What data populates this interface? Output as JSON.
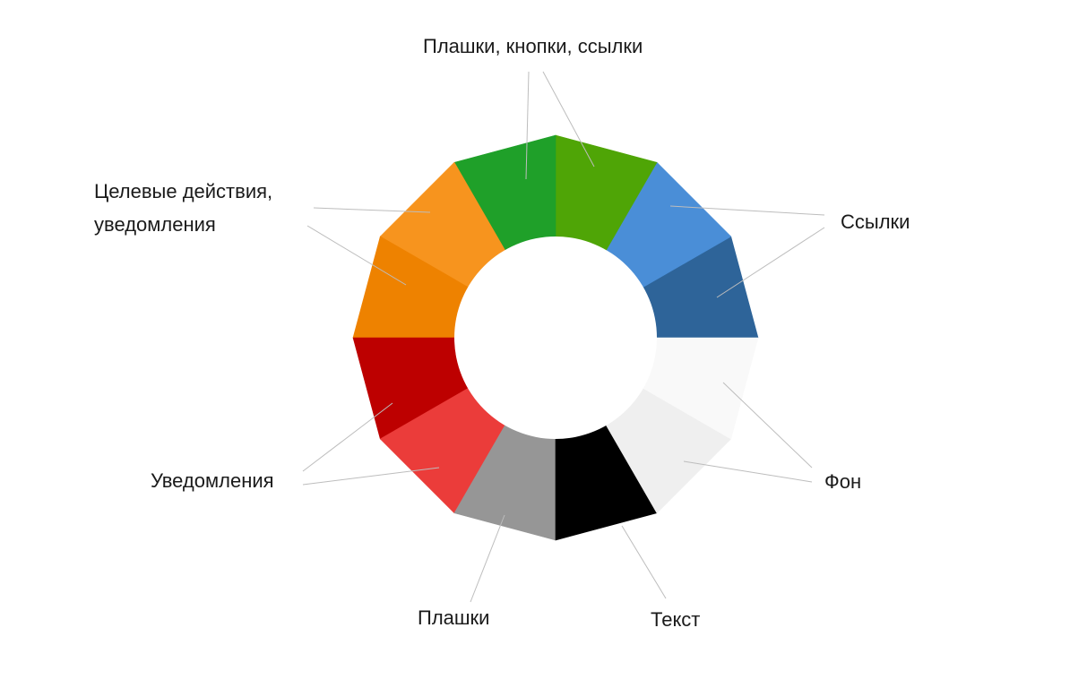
{
  "segments": [
    {
      "color": "#2E6499",
      "group": "links"
    },
    {
      "color": "#4A8ED7",
      "group": "links"
    },
    {
      "color": "#4FA506",
      "group": "primary"
    },
    {
      "color": "#1FA029",
      "group": "primary"
    },
    {
      "color": "#F7941E",
      "group": "accent"
    },
    {
      "color": "#EE8200",
      "group": "accent"
    },
    {
      "color": "#BD0000",
      "group": "notifications"
    },
    {
      "color": "#EB3C3A",
      "group": "notifications"
    },
    {
      "color": "#969696",
      "group": "plates"
    },
    {
      "color": "#000000",
      "group": "text"
    },
    {
      "color": "#EFEFEF",
      "group": "background"
    },
    {
      "color": "#F9F9F9",
      "group": "background"
    }
  ],
  "labels": {
    "primary": "Плашки, кнопки, ссылки",
    "links": "Ссылки",
    "accent_line1": "Целевые действия,",
    "accent_line2": "уведомления",
    "notifications": "Уведомления",
    "background": "Фон",
    "plates": "Плашки",
    "text": "Текст"
  },
  "line_color": "#BDBDBD"
}
